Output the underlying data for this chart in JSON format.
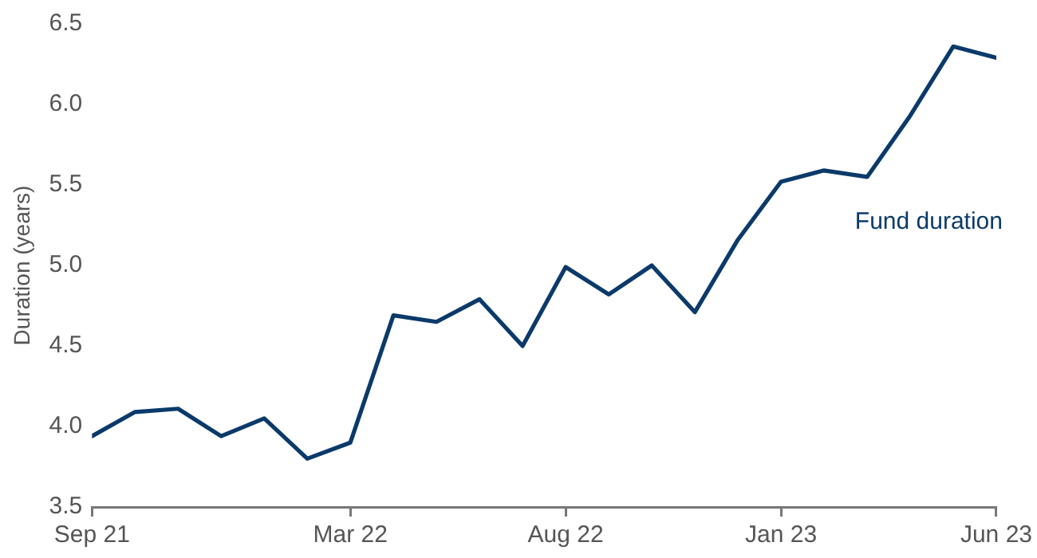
{
  "chart_data": {
    "type": "line",
    "ylabel": "Duration (years)",
    "x": [
      "2021-09",
      "2021-10",
      "2021-11",
      "2021-12",
      "2022-01",
      "2022-02",
      "2022-03",
      "2022-04",
      "2022-05",
      "2022-06",
      "2022-07",
      "2022-08",
      "2022-09",
      "2022-10",
      "2022-11",
      "2022-12",
      "2023-01",
      "2023-02",
      "2023-03",
      "2023-04",
      "2023-05",
      "2023-06"
    ],
    "series": [
      {
        "name": "Fund duration",
        "color": "#0b3a6a",
        "values": [
          3.94,
          4.09,
          4.11,
          3.94,
          4.05,
          3.8,
          3.9,
          4.69,
          4.65,
          4.79,
          4.5,
          4.99,
          4.82,
          5.0,
          4.71,
          5.16,
          5.52,
          5.59,
          5.55,
          5.93,
          6.36,
          6.29
        ]
      }
    ],
    "xlim": [
      "2021-09",
      "2023-06"
    ],
    "xticks": [
      {
        "value": "2021-09",
        "label": "Sep 21"
      },
      {
        "value": "2022-03",
        "label": "Mar 22"
      },
      {
        "value": "2022-08",
        "label": "Aug 22"
      },
      {
        "value": "2023-01",
        "label": "Jan 23"
      },
      {
        "value": "2023-06",
        "label": "Jun 23"
      }
    ],
    "ylim": [
      3.5,
      6.5
    ],
    "yticks": [
      3.5,
      {
        "value": 4,
        "label": "4.0"
      },
      4.5,
      {
        "value": 5,
        "label": "5.0"
      },
      5.5,
      {
        "value": 6,
        "label": "6.0"
      },
      6.5
    ],
    "grid": false,
    "legend": false,
    "marker": "none",
    "line_style": "solid"
  }
}
